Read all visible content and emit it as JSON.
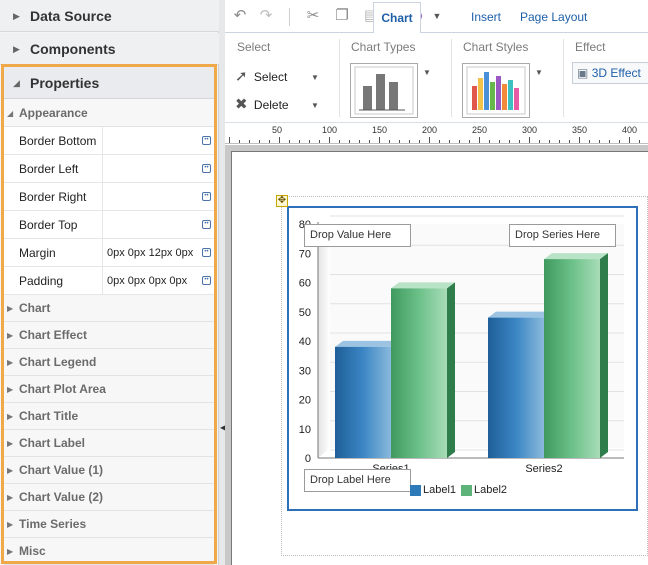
{
  "left_panel": {
    "data_source": "Data Source",
    "components": "Components",
    "properties": "Properties",
    "appearance": "Appearance",
    "props": [
      {
        "label": "Border Bottom",
        "value": ""
      },
      {
        "label": "Border Left",
        "value": ""
      },
      {
        "label": "Border Right",
        "value": ""
      },
      {
        "label": "Border Top",
        "value": ""
      },
      {
        "label": "Margin",
        "value": "0px 0px 12px 0px"
      },
      {
        "label": "Padding",
        "value": "0px 0px 0px 0px"
      }
    ],
    "categories": [
      "Chart",
      "Chart Effect",
      "Chart Legend",
      "Chart Plot Area",
      "Chart Title",
      "Chart Label",
      "Chart Value (1)",
      "Chart Value (2)",
      "Time Series",
      "Misc"
    ],
    "highlight_color": "#f0a94a"
  },
  "toolbar": {
    "icons": [
      "undo-icon",
      "redo-icon",
      "cut-icon",
      "copy-icon",
      "paste-icon",
      "target-icon"
    ],
    "tabs": {
      "insert": "Insert",
      "page_layout": "Page Layout",
      "chart": "Chart"
    }
  },
  "ribbon": {
    "select_group": "Select",
    "select_btn": "Select",
    "delete_btn": "Delete",
    "chart_types": "Chart Types",
    "chart_styles": "Chart Styles",
    "effect": "Effect",
    "effect_btn": "3D Effect"
  },
  "ruler": {
    "ticks": [
      "50",
      "100",
      "150",
      "200",
      "250",
      "300",
      "350",
      "400"
    ]
  },
  "chart": {
    "drop_value": "Drop Value Here",
    "drop_series": "Drop Series Here",
    "drop_label": "Drop Label Here",
    "accent": "#2d6fb8"
  },
  "chart_data": {
    "type": "bar",
    "categories": [
      "Series1",
      "Series2"
    ],
    "series": [
      {
        "name": "Label1",
        "values": [
          38,
          48
        ],
        "color": "#2e7ab8"
      },
      {
        "name": "Label2",
        "values": [
          58,
          68
        ],
        "color": "#5db37a"
      }
    ],
    "ylim": [
      0,
      80
    ],
    "yticks": [
      "0",
      "10",
      "20",
      "30",
      "40",
      "50",
      "60",
      "70",
      "80"
    ],
    "grid": true,
    "legend": "bottom"
  }
}
